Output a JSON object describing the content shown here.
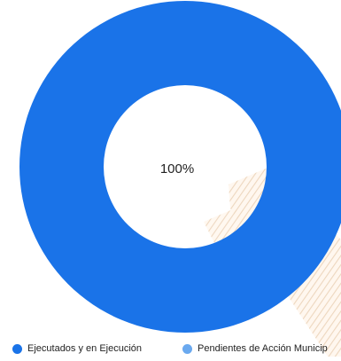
{
  "chart_data": {
    "type": "pie",
    "categories": [
      "Ejecutados y en Ejecución",
      "Pendientes de Acción Municipal"
    ],
    "values": [
      100,
      0
    ],
    "center_label": "100%",
    "legend": [
      {
        "label": "Ejecutados y en Ejecución",
        "color": "#1a73e8"
      },
      {
        "label": "Pendientes de Acción Municip",
        "color": "#6aa9ef"
      }
    ],
    "legend_position": "bottom"
  },
  "colors": {
    "primary": "#1a73e8",
    "secondary": "#6aa9ef",
    "watermark": "#f3e6d8"
  },
  "background": {
    "watermark_icon": "striped-triangle-icon"
  }
}
